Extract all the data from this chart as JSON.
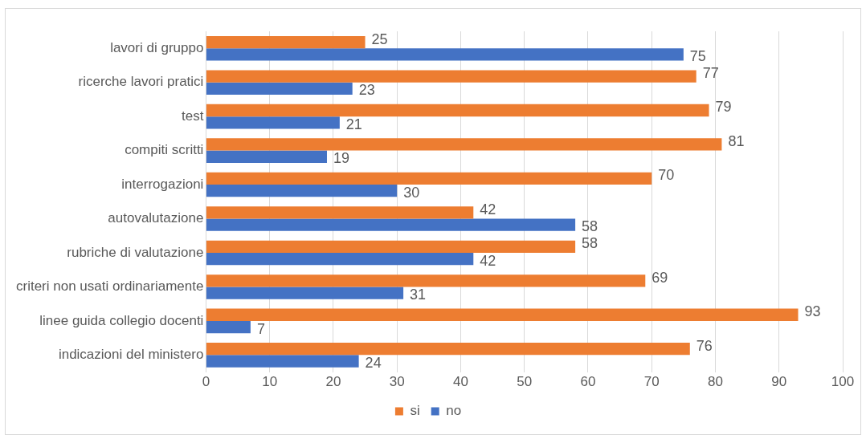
{
  "chart_data": {
    "type": "bar",
    "orientation": "horizontal",
    "categories": [
      "lavori di gruppo",
      "ricerche lavori pratici",
      "test",
      "compiti scritti",
      "interrogazioni",
      "autovalutazione",
      "rubriche di valutazione",
      "criteri non usati ordinariamente",
      "linee guida collegio docenti",
      "indicazioni del ministero"
    ],
    "series": [
      {
        "name": "si",
        "color": "#ed7d31",
        "values": [
          25,
          77,
          79,
          81,
          70,
          42,
          58,
          69,
          93,
          76
        ]
      },
      {
        "name": "no",
        "color": "#4472c4",
        "values": [
          75,
          23,
          21,
          19,
          30,
          58,
          42,
          31,
          7,
          24
        ]
      }
    ],
    "xlim": [
      0,
      100
    ],
    "xticks": [
      0,
      10,
      20,
      30,
      40,
      50,
      60,
      70,
      80,
      90,
      100
    ],
    "grid": "x",
    "legend": "bottom",
    "data_labels": true
  }
}
